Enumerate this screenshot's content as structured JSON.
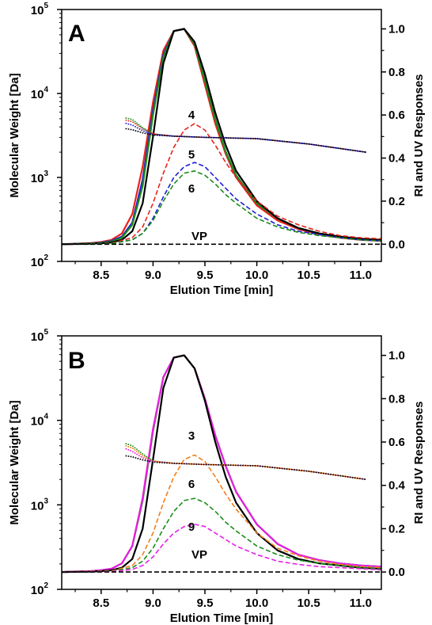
{
  "chart_data": [
    {
      "panel": "A",
      "type": "line",
      "xlabel": "Elution Time [min]",
      "ylabel_left": "Molecular Weight [Da]",
      "ylabel_right": "RI and UV Responses",
      "x_ticks": [
        "8.5",
        "9.0",
        "9.5",
        "10.0",
        "10.5",
        "11.0"
      ],
      "xlim": [
        8.12,
        11.2
      ],
      "ylim_left": [
        100,
        100000
      ],
      "y_left_scale": "log",
      "y_left_ticks": [
        {
          "base": "10",
          "exp": "2"
        },
        {
          "base": "10",
          "exp": "3"
        },
        {
          "base": "10",
          "exp": "4"
        },
        {
          "base": "10",
          "exp": "5"
        }
      ],
      "ylim_right": [
        -0.08,
        1.09
      ],
      "y_right_ticks": [
        "0.0",
        "0.2",
        "0.4",
        "0.6",
        "0.8",
        "1.0"
      ],
      "grid": false,
      "legend": "none",
      "series": [
        {
          "axis": "right",
          "style": "solid",
          "color": "#e8231c",
          "x": [
            8.12,
            8.4,
            8.5,
            8.6,
            8.7,
            8.8,
            8.9,
            9.0,
            9.1,
            9.2,
            9.3,
            9.4,
            9.5,
            9.6,
            9.7,
            9.8,
            10.0,
            10.2,
            10.4,
            10.6,
            10.8,
            11.0,
            11.2
          ],
          "y": [
            0.0,
            0.005,
            0.01,
            0.02,
            0.05,
            0.14,
            0.36,
            0.66,
            0.9,
            0.99,
            1.0,
            0.92,
            0.74,
            0.56,
            0.42,
            0.31,
            0.18,
            0.11,
            0.07,
            0.045,
            0.03,
            0.02,
            0.015
          ]
        },
        {
          "axis": "right",
          "style": "solid",
          "color": "#1f1fd6",
          "x": [
            8.12,
            8.4,
            8.5,
            8.6,
            8.7,
            8.8,
            8.9,
            9.0,
            9.1,
            9.2,
            9.3,
            9.4,
            9.5,
            9.6,
            9.7,
            9.8,
            10.0,
            10.2,
            10.4,
            10.6,
            10.8,
            11.0,
            11.2
          ],
          "y": [
            0.0,
            0.004,
            0.008,
            0.015,
            0.035,
            0.1,
            0.3,
            0.62,
            0.88,
            0.99,
            1.0,
            0.93,
            0.76,
            0.58,
            0.43,
            0.32,
            0.19,
            0.12,
            0.075,
            0.05,
            0.035,
            0.025,
            0.02
          ]
        },
        {
          "axis": "right",
          "style": "solid",
          "color": "#1a8c1a",
          "x": [
            8.12,
            8.4,
            8.5,
            8.6,
            8.7,
            8.8,
            8.9,
            9.0,
            9.1,
            9.2,
            9.3,
            9.4,
            9.5,
            9.6,
            9.7,
            9.8,
            10.0,
            10.2,
            10.4,
            10.6,
            10.8,
            11.0,
            11.2
          ],
          "y": [
            0.0,
            0.003,
            0.006,
            0.012,
            0.03,
            0.09,
            0.27,
            0.6,
            0.87,
            0.99,
            1.0,
            0.93,
            0.76,
            0.58,
            0.43,
            0.32,
            0.19,
            0.12,
            0.075,
            0.05,
            0.035,
            0.025,
            0.02
          ]
        },
        {
          "axis": "right",
          "style": "solid",
          "color": "#000000",
          "x": [
            8.12,
            8.4,
            8.5,
            8.6,
            8.7,
            8.8,
            8.9,
            9.0,
            9.1,
            9.2,
            9.3,
            9.4,
            9.5,
            9.6,
            9.7,
            9.8,
            10.0,
            10.2,
            10.4,
            10.6,
            10.8,
            11.0,
            11.2
          ],
          "y": [
            0.0,
            0.002,
            0.004,
            0.008,
            0.02,
            0.06,
            0.19,
            0.5,
            0.84,
            0.99,
            1.0,
            0.94,
            0.79,
            0.61,
            0.46,
            0.34,
            0.2,
            0.12,
            0.075,
            0.05,
            0.035,
            0.025,
            0.02
          ]
        },
        {
          "axis": "right",
          "style": "dashed",
          "color": "#e8231c",
          "label": "4",
          "x": [
            8.12,
            8.6,
            8.8,
            8.9,
            9.0,
            9.1,
            9.2,
            9.3,
            9.4,
            9.5,
            9.6,
            9.7,
            9.8,
            10.0,
            10.2,
            10.4,
            10.6,
            10.8,
            11.0,
            11.2
          ],
          "y": [
            0.0,
            0.005,
            0.03,
            0.08,
            0.19,
            0.33,
            0.45,
            0.53,
            0.56,
            0.53,
            0.46,
            0.38,
            0.31,
            0.2,
            0.13,
            0.09,
            0.06,
            0.04,
            0.03,
            0.025
          ]
        },
        {
          "axis": "right",
          "style": "dashed",
          "color": "#1f1fd6",
          "label": "5",
          "x": [
            8.12,
            8.6,
            8.8,
            8.9,
            9.0,
            9.1,
            9.2,
            9.3,
            9.4,
            9.5,
            9.6,
            9.7,
            9.8,
            10.0,
            10.2,
            10.4,
            10.6,
            10.8,
            11.0,
            11.2
          ],
          "y": [
            0.0,
            0.003,
            0.02,
            0.05,
            0.12,
            0.22,
            0.31,
            0.36,
            0.38,
            0.36,
            0.31,
            0.26,
            0.21,
            0.14,
            0.09,
            0.06,
            0.045,
            0.03,
            0.02,
            0.015
          ]
        },
        {
          "axis": "right",
          "style": "dashed",
          "color": "#1a8c1a",
          "label": "6",
          "x": [
            8.12,
            8.6,
            8.8,
            8.9,
            9.0,
            9.1,
            9.2,
            9.3,
            9.4,
            9.5,
            9.6,
            9.7,
            9.8,
            10.0,
            10.2,
            10.4,
            10.6,
            10.8,
            11.0,
            11.2
          ],
          "y": [
            0.0,
            0.003,
            0.02,
            0.05,
            0.11,
            0.2,
            0.28,
            0.33,
            0.34,
            0.32,
            0.28,
            0.23,
            0.19,
            0.12,
            0.08,
            0.055,
            0.04,
            0.03,
            0.02,
            0.015
          ]
        },
        {
          "axis": "right",
          "style": "dashed",
          "color": "#000000",
          "label": "VP",
          "x": [
            8.12,
            11.2
          ],
          "y": [
            0.0,
            0.0
          ]
        },
        {
          "axis": "left",
          "style": "dotted",
          "color": "#1a8c1a",
          "x": [
            8.74,
            8.8,
            8.9,
            9.0,
            9.2,
            9.5,
            10.0,
            10.5,
            11.05
          ],
          "y": [
            5100,
            4900,
            3900,
            3300,
            3100,
            3000,
            2900,
            2500,
            2000
          ]
        },
        {
          "axis": "left",
          "style": "dotted",
          "color": "#e8231c",
          "x": [
            8.74,
            8.8,
            8.9,
            9.0,
            9.2,
            9.5,
            10.0,
            10.5,
            11.05
          ],
          "y": [
            4800,
            4600,
            3800,
            3300,
            3100,
            3000,
            2900,
            2500,
            2000
          ]
        },
        {
          "axis": "left",
          "style": "dotted",
          "color": "#1f1fd6",
          "x": [
            8.74,
            8.8,
            8.9,
            9.0,
            9.2,
            9.5,
            10.0,
            10.5,
            11.05
          ],
          "y": [
            4400,
            4200,
            3600,
            3250,
            3100,
            3000,
            2900,
            2500,
            2000
          ]
        },
        {
          "axis": "left",
          "style": "dotted",
          "color": "#000000",
          "x": [
            8.74,
            8.8,
            8.9,
            9.0,
            9.2,
            9.5,
            10.0,
            10.5,
            11.05
          ],
          "y": [
            3800,
            3700,
            3400,
            3200,
            3100,
            3000,
            2900,
            2500,
            2000
          ]
        }
      ]
    },
    {
      "panel": "B",
      "type": "line",
      "xlabel": "Elution Time [min]",
      "ylabel_left": "Molecular Weight [Da]",
      "ylabel_right": "RI and UV Responses",
      "x_ticks": [
        "8.5",
        "9.0",
        "9.5",
        "10.0",
        "10.5",
        "11.0"
      ],
      "xlim": [
        8.12,
        11.2
      ],
      "ylim_left": [
        100,
        100000
      ],
      "y_left_scale": "log",
      "y_left_ticks": [
        {
          "base": "10",
          "exp": "2"
        },
        {
          "base": "10",
          "exp": "3"
        },
        {
          "base": "10",
          "exp": "4"
        },
        {
          "base": "10",
          "exp": "5"
        }
      ],
      "ylim_right": [
        -0.08,
        1.09
      ],
      "y_right_ticks": [
        "0.0",
        "0.2",
        "0.4",
        "0.6",
        "0.8",
        "1.0"
      ],
      "grid": false,
      "legend": "none",
      "series": [
        {
          "axis": "right",
          "style": "solid",
          "color": "#f07f1a",
          "x": [
            8.12,
            8.4,
            8.5,
            8.6,
            8.7,
            8.8,
            8.9,
            9.0,
            9.1,
            9.2,
            9.3,
            9.4,
            9.5,
            9.6,
            9.7,
            9.8,
            10.0,
            10.2,
            10.4,
            10.6,
            10.8,
            11.0,
            11.2
          ],
          "y": [
            0.0,
            0.004,
            0.008,
            0.015,
            0.04,
            0.12,
            0.34,
            0.66,
            0.9,
            0.99,
            1.0,
            0.94,
            0.8,
            0.63,
            0.49,
            0.37,
            0.22,
            0.13,
            0.08,
            0.055,
            0.04,
            0.03,
            0.025
          ]
        },
        {
          "axis": "right",
          "style": "solid",
          "color": "#1a8c1a",
          "x": [
            8.12,
            8.4,
            8.5,
            8.6,
            8.7,
            8.8,
            8.9,
            9.0,
            9.1,
            9.2,
            9.3,
            9.4,
            9.5,
            9.6,
            9.7,
            9.8,
            10.0,
            10.2,
            10.4,
            10.6,
            10.8,
            11.0,
            11.2
          ],
          "y": [
            0.0,
            0.004,
            0.008,
            0.015,
            0.04,
            0.12,
            0.33,
            0.65,
            0.9,
            0.99,
            1.0,
            0.94,
            0.8,
            0.63,
            0.49,
            0.37,
            0.22,
            0.13,
            0.08,
            0.055,
            0.04,
            0.03,
            0.025
          ]
        },
        {
          "axis": "right",
          "style": "solid",
          "color": "#e61ee6",
          "x": [
            8.12,
            8.4,
            8.5,
            8.6,
            8.7,
            8.8,
            8.9,
            9.0,
            9.1,
            9.2,
            9.3,
            9.4,
            9.5,
            9.6,
            9.7,
            9.8,
            10.0,
            10.2,
            10.4,
            10.6,
            10.8,
            11.0,
            11.2
          ],
          "y": [
            0.0,
            0.004,
            0.008,
            0.015,
            0.04,
            0.12,
            0.34,
            0.66,
            0.9,
            0.99,
            1.0,
            0.94,
            0.8,
            0.63,
            0.49,
            0.37,
            0.22,
            0.13,
            0.08,
            0.055,
            0.04,
            0.03,
            0.025
          ]
        },
        {
          "axis": "right",
          "style": "solid",
          "color": "#000000",
          "x": [
            8.12,
            8.4,
            8.5,
            8.6,
            8.7,
            8.8,
            8.9,
            9.0,
            9.1,
            9.2,
            9.3,
            9.4,
            9.5,
            9.6,
            9.7,
            9.8,
            10.0,
            10.2,
            10.4,
            10.6,
            10.8,
            11.0,
            11.2
          ],
          "y": [
            0.0,
            0.002,
            0.004,
            0.008,
            0.02,
            0.06,
            0.2,
            0.52,
            0.85,
            0.99,
            1.0,
            0.94,
            0.79,
            0.6,
            0.44,
            0.32,
            0.18,
            0.1,
            0.06,
            0.04,
            0.03,
            0.02,
            0.015
          ]
        },
        {
          "axis": "right",
          "style": "dashed",
          "color": "#f07f1a",
          "label": "3",
          "x": [
            8.12,
            8.6,
            8.8,
            8.9,
            9.0,
            9.1,
            9.2,
            9.3,
            9.4,
            9.5,
            9.6,
            9.7,
            9.8,
            10.0,
            10.2,
            10.4,
            10.6,
            10.8,
            11.0,
            11.2
          ],
          "y": [
            0.0,
            0.005,
            0.03,
            0.08,
            0.18,
            0.32,
            0.44,
            0.52,
            0.54,
            0.51,
            0.44,
            0.36,
            0.29,
            0.18,
            0.11,
            0.075,
            0.05,
            0.035,
            0.025,
            0.02
          ]
        },
        {
          "axis": "right",
          "style": "dashed",
          "color": "#1a8c1a",
          "label": "6",
          "x": [
            8.12,
            8.6,
            8.8,
            8.9,
            9.0,
            9.1,
            9.2,
            9.3,
            9.4,
            9.5,
            9.6,
            9.7,
            9.8,
            10.0,
            10.2,
            10.4,
            10.6,
            10.8,
            11.0,
            11.2
          ],
          "y": [
            0.0,
            0.003,
            0.02,
            0.05,
            0.11,
            0.2,
            0.28,
            0.33,
            0.34,
            0.32,
            0.28,
            0.23,
            0.19,
            0.12,
            0.08,
            0.055,
            0.04,
            0.03,
            0.02,
            0.015
          ]
        },
        {
          "axis": "right",
          "style": "dashed",
          "color": "#e61ee6",
          "label": "9",
          "x": [
            8.12,
            8.6,
            8.8,
            8.9,
            9.0,
            9.1,
            9.2,
            9.3,
            9.4,
            9.5,
            9.6,
            9.7,
            9.8,
            10.0,
            10.2,
            10.4,
            10.6,
            10.8,
            11.0,
            11.2
          ],
          "y": [
            0.0,
            0.002,
            0.012,
            0.03,
            0.07,
            0.13,
            0.18,
            0.21,
            0.22,
            0.21,
            0.18,
            0.15,
            0.12,
            0.08,
            0.05,
            0.035,
            0.025,
            0.02,
            0.015,
            0.01
          ]
        },
        {
          "axis": "right",
          "style": "dashed",
          "color": "#000000",
          "label": "VP",
          "x": [
            8.12,
            11.2
          ],
          "y": [
            0.0,
            0.0
          ]
        },
        {
          "axis": "left",
          "style": "dotted",
          "color": "#1a8c1a",
          "x": [
            8.74,
            8.8,
            8.9,
            9.0,
            9.2,
            9.5,
            10.0,
            10.5,
            11.05
          ],
          "y": [
            5300,
            5000,
            4000,
            3300,
            3100,
            3000,
            2900,
            2500,
            2000
          ]
        },
        {
          "axis": "left",
          "style": "dotted",
          "color": "#f07f1a",
          "x": [
            8.74,
            8.8,
            8.9,
            9.0,
            9.2,
            9.5,
            10.0,
            10.5,
            11.05
          ],
          "y": [
            5000,
            4700,
            3800,
            3300,
            3100,
            3000,
            2900,
            2500,
            2000
          ]
        },
        {
          "axis": "left",
          "style": "dotted",
          "color": "#e61ee6",
          "x": [
            8.74,
            8.8,
            8.9,
            9.0,
            9.2,
            9.5,
            10.0,
            10.5,
            11.05
          ],
          "y": [
            4600,
            4300,
            3600,
            3250,
            3100,
            3000,
            2900,
            2500,
            2000
          ]
        },
        {
          "axis": "left",
          "style": "dotted",
          "color": "#000000",
          "x": [
            8.74,
            8.8,
            8.9,
            9.0,
            9.2,
            9.5,
            10.0,
            10.5,
            11.05
          ],
          "y": [
            3800,
            3700,
            3400,
            3200,
            3100,
            3000,
            2900,
            2500,
            2000
          ]
        }
      ]
    }
  ]
}
